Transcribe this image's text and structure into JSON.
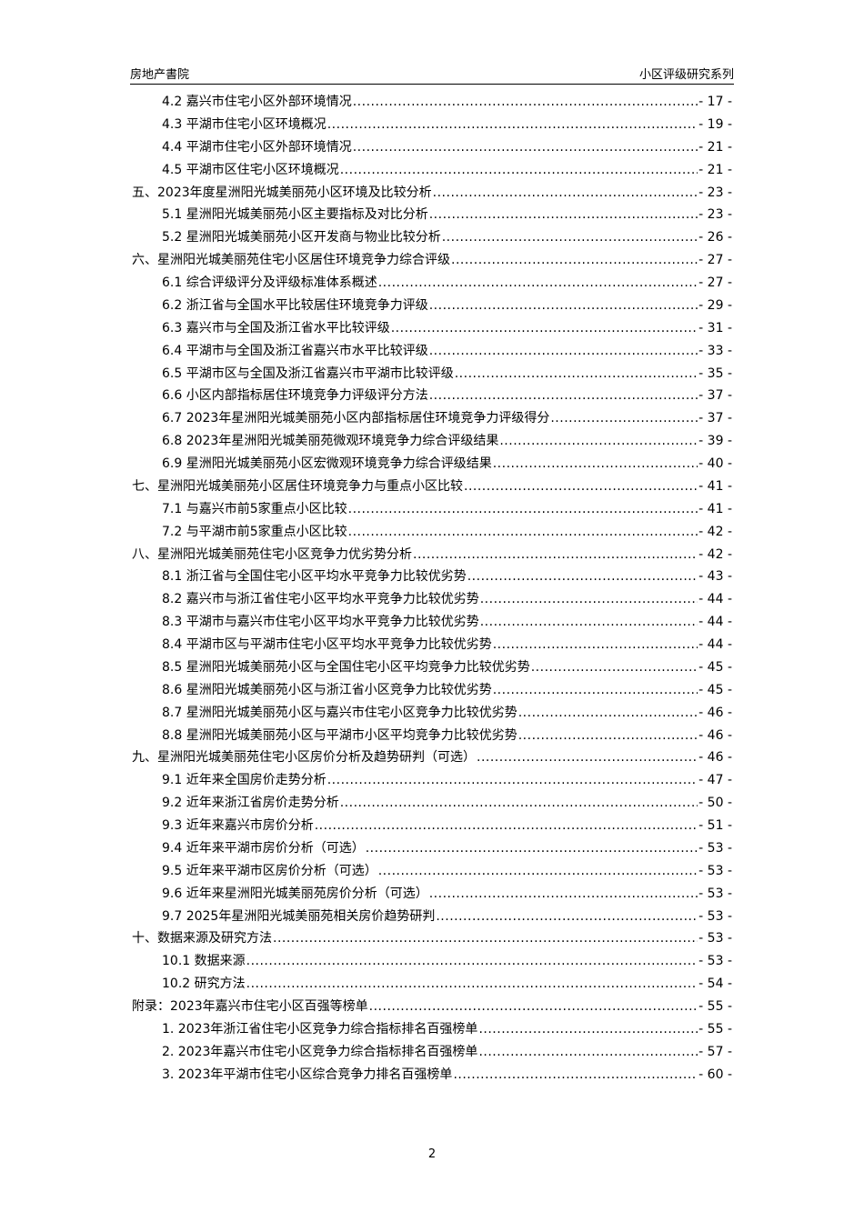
{
  "header": {
    "left": "房地产書院",
    "right": "小区评级研究系列"
  },
  "toc": [
    {
      "level": 2,
      "title": "4.2 嘉兴市住宅小区外部环境情况",
      "page": "- 17 -"
    },
    {
      "level": 2,
      "title": "4.3 平湖市住宅小区环境概况",
      "page": "- 19 -"
    },
    {
      "level": 2,
      "title": "4.4 平湖市住宅小区外部环境情况",
      "page": "- 21 -"
    },
    {
      "level": 2,
      "title": "4.5 平湖市区住宅小区环境概况",
      "page": "- 21 -"
    },
    {
      "level": 1,
      "title": "五、2023年度星洲阳光城美丽苑小区环境及比较分析",
      "page": "- 23 -"
    },
    {
      "level": 2,
      "title": "5.1 星洲阳光城美丽苑小区主要指标及对比分析",
      "page": "- 23 -"
    },
    {
      "level": 2,
      "title": "5.2 星洲阳光城美丽苑小区开发商与物业比较分析",
      "page": "- 26 -"
    },
    {
      "level": 1,
      "title": "六、星洲阳光城美丽苑住宅小区居住环境竞争力综合评级",
      "page": "- 27 -"
    },
    {
      "level": 2,
      "title": "6.1 综合评级评分及评级标准体系概述",
      "page": "- 27 -"
    },
    {
      "level": 2,
      "title": "6.2 浙江省与全国水平比较居住环境竞争力评级",
      "page": "- 29 -"
    },
    {
      "level": 2,
      "title": "6.3 嘉兴市与全国及浙江省水平比较评级",
      "page": "- 31 -"
    },
    {
      "level": 2,
      "title": "6.4 平湖市与全国及浙江省嘉兴市水平比较评级",
      "page": "- 33 -"
    },
    {
      "level": 2,
      "title": "6.5 平湖市区与全国及浙江省嘉兴市平湖市比较评级",
      "page": "- 35 -"
    },
    {
      "level": 2,
      "title": "6.6 小区内部指标居住环境竞争力评级评分方法",
      "page": "- 37 -"
    },
    {
      "level": 2,
      "title": "6.7 2023年星洲阳光城美丽苑小区内部指标居住环境竞争力评级得分",
      "page": "- 37 -"
    },
    {
      "level": 2,
      "title": "6.8 2023年星洲阳光城美丽苑微观环境竞争力综合评级结果",
      "page": "- 39 -"
    },
    {
      "level": 2,
      "title": "6.9 星洲阳光城美丽苑小区宏微观环境竞争力综合评级结果",
      "page": "- 40 -"
    },
    {
      "level": 1,
      "title": "七、星洲阳光城美丽苑小区居住环境竞争力与重点小区比较",
      "page": "- 41 -"
    },
    {
      "level": 2,
      "title": "7.1 与嘉兴市前5家重点小区比较",
      "page": "- 41 -"
    },
    {
      "level": 2,
      "title": "7.2 与平湖市前5家重点小区比较",
      "page": "- 42 -"
    },
    {
      "level": 1,
      "title": "八、星洲阳光城美丽苑住宅小区竞争力优劣势分析",
      "page": "- 42 -"
    },
    {
      "level": 2,
      "title": "8.1 浙江省与全国住宅小区平均水平竞争力比较优劣势",
      "page": "- 43 -"
    },
    {
      "level": 2,
      "title": "8.2 嘉兴市与浙江省住宅小区平均水平竞争力比较优劣势",
      "page": "- 44 -"
    },
    {
      "level": 2,
      "title": "8.3 平湖市与嘉兴市住宅小区平均水平竞争力比较优劣势",
      "page": "- 44 -"
    },
    {
      "level": 2,
      "title": "8.4 平湖市区与平湖市住宅小区平均水平竞争力比较优劣势",
      "page": "- 44 -"
    },
    {
      "level": 2,
      "title": "8.5 星洲阳光城美丽苑小区与全国住宅小区平均竞争力比较优劣势",
      "page": "- 45 -"
    },
    {
      "level": 2,
      "title": "8.6 星洲阳光城美丽苑小区与浙江省小区竞争力比较优劣势",
      "page": "- 45 -"
    },
    {
      "level": 2,
      "title": "8.7 星洲阳光城美丽苑小区与嘉兴市住宅小区竞争力比较优劣势",
      "page": "- 46 -"
    },
    {
      "level": 2,
      "title": "8.8 星洲阳光城美丽苑小区与平湖市小区平均竞争力比较优劣势",
      "page": "- 46 -"
    },
    {
      "level": 1,
      "title": "九、星洲阳光城美丽苑住宅小区房价分析及趋势研判（可选）",
      "page": "- 46 -"
    },
    {
      "level": 2,
      "title": "9.1 近年来全国房价走势分析",
      "page": "- 47 -"
    },
    {
      "level": 2,
      "title": "9.2 近年来浙江省房价走势分析",
      "page": "- 50 -"
    },
    {
      "level": 2,
      "title": "9.3 近年来嘉兴市房价分析",
      "page": "- 51 -"
    },
    {
      "level": 2,
      "title": "9.4 近年来平湖市房价分析（可选）",
      "page": "- 53 -"
    },
    {
      "level": 2,
      "title": "9.5 近年来平湖市区房价分析（可选）",
      "page": "- 53 -"
    },
    {
      "level": 2,
      "title": "9.6 近年来星洲阳光城美丽苑房价分析（可选）",
      "page": "- 53 -"
    },
    {
      "level": 2,
      "title": "9.7 2025年星洲阳光城美丽苑相关房价趋势研判",
      "page": "- 53 -"
    },
    {
      "level": 1,
      "title": "十、数据来源及研究方法",
      "page": "- 53 -"
    },
    {
      "level": 2,
      "title": "10.1 数据来源",
      "page": "- 53 -"
    },
    {
      "level": 2,
      "title": "10.2 研究方法",
      "page": "- 54 -"
    },
    {
      "level": 1,
      "title": "附录：2023年嘉兴市住宅小区百强等榜单",
      "page": "- 55 -"
    },
    {
      "level": 2,
      "title": "1. 2023年浙江省住宅小区竞争力综合指标排名百强榜单",
      "page": "- 55 -"
    },
    {
      "level": 2,
      "title": "2. 2023年嘉兴市住宅小区竞争力综合指标排名百强榜单",
      "page": "- 57 -"
    },
    {
      "level": 2,
      "title": "3. 2023年平湖市住宅小区综合竞争力排名百强榜单",
      "page": "- 60 -"
    }
  ],
  "footer": {
    "page_number": "2"
  }
}
